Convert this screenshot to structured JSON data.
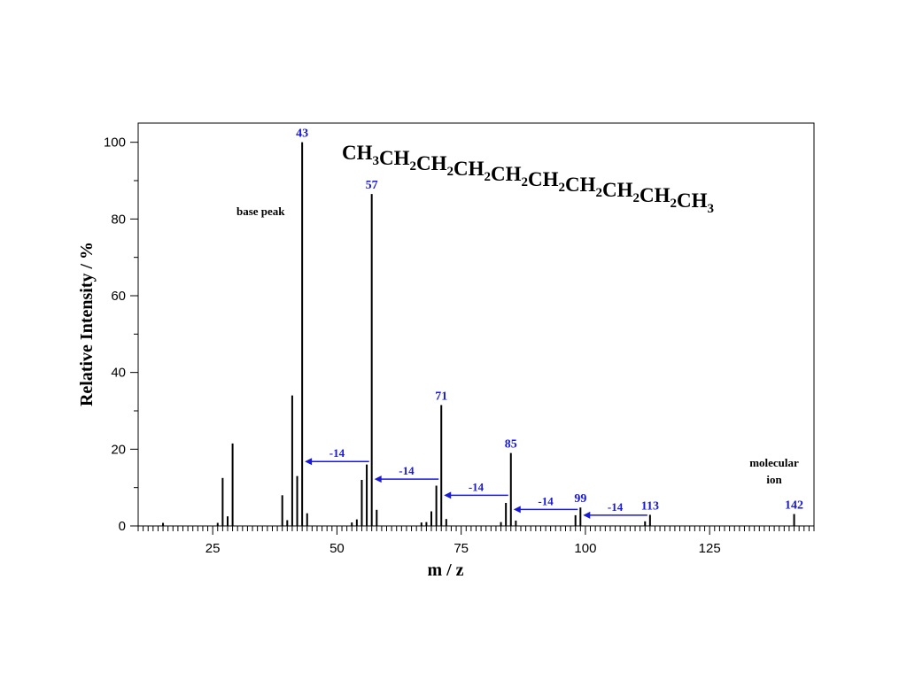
{
  "chart_data": {
    "type": "bar",
    "title": "CH3CH2CH2CH2CH2CH2CH2CH2CH2CH3",
    "formula": [
      {
        "t": "CH",
        "sub": "3"
      },
      {
        "t": "CH",
        "sub": "2"
      },
      {
        "t": "CH",
        "sub": "2"
      },
      {
        "t": "CH",
        "sub": "2"
      },
      {
        "t": "CH",
        "sub": "2"
      },
      {
        "t": "CH",
        "sub": "2"
      },
      {
        "t": "CH",
        "sub": "2"
      },
      {
        "t": "CH",
        "sub": "2"
      },
      {
        "t": "CH",
        "sub": "2"
      },
      {
        "t": "CH",
        "sub": "3"
      }
    ],
    "xlabel": "m / z",
    "ylabel": "Relative Intensity / %",
    "xlim": [
      10,
      146
    ],
    "ylim": [
      0,
      105
    ],
    "x_ticks": [
      25,
      50,
      75,
      100,
      125
    ],
    "y_ticks": [
      0,
      20,
      40,
      60,
      80,
      100
    ],
    "peaks": [
      {
        "mz": 15,
        "intensity": 0.8
      },
      {
        "mz": 26,
        "intensity": 0.8
      },
      {
        "mz": 27,
        "intensity": 12.5
      },
      {
        "mz": 28,
        "intensity": 2.5
      },
      {
        "mz": 29,
        "intensity": 21.5
      },
      {
        "mz": 39,
        "intensity": 8.0
      },
      {
        "mz": 40,
        "intensity": 1.5
      },
      {
        "mz": 41,
        "intensity": 34.0
      },
      {
        "mz": 42,
        "intensity": 13.0
      },
      {
        "mz": 43,
        "intensity": 100
      },
      {
        "mz": 44,
        "intensity": 3.3
      },
      {
        "mz": 53,
        "intensity": 0.9
      },
      {
        "mz": 54,
        "intensity": 1.7
      },
      {
        "mz": 55,
        "intensity": 12.0
      },
      {
        "mz": 56,
        "intensity": 16.0
      },
      {
        "mz": 57,
        "intensity": 86.5
      },
      {
        "mz": 58,
        "intensity": 4.2
      },
      {
        "mz": 67,
        "intensity": 0.9
      },
      {
        "mz": 68,
        "intensity": 1.0
      },
      {
        "mz": 69,
        "intensity": 3.8
      },
      {
        "mz": 70,
        "intensity": 10.5
      },
      {
        "mz": 71,
        "intensity": 31.5
      },
      {
        "mz": 72,
        "intensity": 1.8
      },
      {
        "mz": 83,
        "intensity": 1.0
      },
      {
        "mz": 84,
        "intensity": 6.0
      },
      {
        "mz": 85,
        "intensity": 19.0
      },
      {
        "mz": 86,
        "intensity": 1.4
      },
      {
        "mz": 98,
        "intensity": 2.8
      },
      {
        "mz": 99,
        "intensity": 4.8
      },
      {
        "mz": 112,
        "intensity": 1.2
      },
      {
        "mz": 113,
        "intensity": 2.9
      },
      {
        "mz": 142,
        "intensity": 3.1
      }
    ],
    "peak_labels": [
      {
        "mz": 43,
        "intensity": 100,
        "text": "43"
      },
      {
        "mz": 57,
        "intensity": 86.5,
        "text": "57"
      },
      {
        "mz": 71,
        "intensity": 31.5,
        "text": "71"
      },
      {
        "mz": 85,
        "intensity": 19.0,
        "text": "85"
      },
      {
        "mz": 99,
        "intensity": 4.8,
        "text": "99"
      },
      {
        "mz": 113,
        "intensity": 2.9,
        "text": "113"
      },
      {
        "mz": 142,
        "intensity": 3.1,
        "text": "142"
      }
    ],
    "losses": [
      {
        "from": 57,
        "to": 43,
        "y": 16.8,
        "text": "-14"
      },
      {
        "from": 71,
        "to": 57,
        "y": 12.2,
        "text": "-14"
      },
      {
        "from": 85,
        "to": 71,
        "y": 8.0,
        "text": "-14"
      },
      {
        "from": 99,
        "to": 85,
        "y": 4.3,
        "text": "-14"
      },
      {
        "from": 113,
        "to": 99,
        "y": 2.8,
        "text": "-14"
      }
    ],
    "annotations": {
      "base_peak": "base peak",
      "molecular_ion": [
        "molecular",
        "ion"
      ]
    },
    "colors": {
      "peaks": "#000000",
      "labels": "#1a1ad6",
      "arrows": "#1a1ad6"
    },
    "grid": false
  }
}
